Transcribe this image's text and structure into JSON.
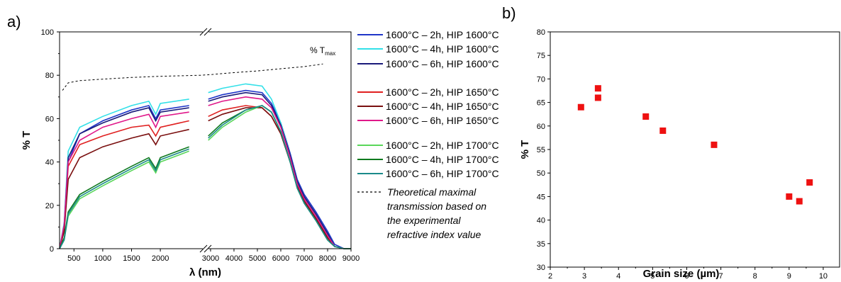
{
  "chart_data": [
    {
      "panel_label": "a)",
      "type": "line",
      "xlabel": "λ (nm)",
      "ylabel": "% T",
      "ylim": [
        0,
        100
      ],
      "yticks": [
        0,
        20,
        40,
        60,
        80,
        100
      ],
      "xticks": [
        "500",
        "1000",
        "1500",
        "2000",
        "3000",
        "4000",
        "5000",
        "6000",
        "7000",
        "8000",
        "9000"
      ],
      "axis_break": [
        2750,
        2850
      ],
      "annotation": "% T",
      "annotation_sub": "max",
      "series": [
        {
          "name": "1600°C – 2h, HIP 1600°C",
          "color": "#1f35c8",
          "points": [
            [
              250,
              0
            ],
            [
              330,
              10
            ],
            [
              400,
              40
            ],
            [
              600,
              53
            ],
            [
              1000,
              59
            ],
            [
              1500,
              64
            ],
            [
              1800,
              66
            ],
            [
              1920,
              60
            ],
            [
              2000,
              64
            ],
            [
              2500,
              66
            ],
            [
              2900,
              69
            ],
            [
              3500,
              71
            ],
            [
              4500,
              73
            ],
            [
              5200,
              72
            ],
            [
              5600,
              67
            ],
            [
              6000,
              58
            ],
            [
              6400,
              44
            ],
            [
              6700,
              32
            ],
            [
              7000,
              25
            ],
            [
              7500,
              17
            ],
            [
              8000,
              8
            ],
            [
              8300,
              2
            ],
            [
              8700,
              0
            ],
            [
              9000,
              0
            ]
          ]
        },
        {
          "name": "1600°C – 4h, HIP 1600°C",
          "color": "#33e0e8",
          "points": [
            [
              250,
              0
            ],
            [
              330,
              12
            ],
            [
              400,
              45
            ],
            [
              600,
              56
            ],
            [
              1000,
              61
            ],
            [
              1500,
              66
            ],
            [
              1800,
              68
            ],
            [
              1920,
              62
            ],
            [
              2000,
              67
            ],
            [
              2500,
              69
            ],
            [
              2900,
              72
            ],
            [
              3500,
              74
            ],
            [
              4500,
              76
            ],
            [
              5200,
              75
            ],
            [
              5600,
              69
            ],
            [
              6000,
              58
            ],
            [
              6400,
              43
            ],
            [
              6700,
              31
            ],
            [
              7000,
              24
            ],
            [
              7500,
              16
            ],
            [
              8000,
              7
            ],
            [
              8300,
              1
            ],
            [
              8700,
              0
            ],
            [
              9000,
              0
            ]
          ]
        },
        {
          "name": "1600°C – 6h, HIP 1600°C",
          "color": "#1a1a7a",
          "points": [
            [
              250,
              0
            ],
            [
              330,
              11
            ],
            [
              400,
              42
            ],
            [
              600,
              53
            ],
            [
              1000,
              58
            ],
            [
              1500,
              63
            ],
            [
              1800,
              65
            ],
            [
              1920,
              59
            ],
            [
              2000,
              63
            ],
            [
              2500,
              65
            ],
            [
              2900,
              68
            ],
            [
              3500,
              70
            ],
            [
              4500,
              72
            ],
            [
              5200,
              71
            ],
            [
              5600,
              66
            ],
            [
              6000,
              57
            ],
            [
              6400,
              43
            ],
            [
              6700,
              31
            ],
            [
              7000,
              24
            ],
            [
              7500,
              16
            ],
            [
              8000,
              7
            ],
            [
              8300,
              1
            ],
            [
              8700,
              0
            ],
            [
              9000,
              0
            ]
          ]
        },
        {
          "name": "1600°C – 2h, HIP 1650°C",
          "color": "#e02020",
          "points": [
            [
              250,
              0
            ],
            [
              330,
              10
            ],
            [
              400,
              38
            ],
            [
              600,
              48
            ],
            [
              1000,
              52
            ],
            [
              1500,
              56
            ],
            [
              1800,
              57
            ],
            [
              1920,
              52
            ],
            [
              2000,
              56
            ],
            [
              2500,
              59
            ],
            [
              2900,
              61
            ],
            [
              3500,
              64
            ],
            [
              4500,
              66
            ],
            [
              5200,
              65
            ],
            [
              5600,
              61
            ],
            [
              6000,
              53
            ],
            [
              6400,
              40
            ],
            [
              6700,
              29
            ],
            [
              7000,
              22
            ],
            [
              7500,
              14
            ],
            [
              8000,
              5
            ],
            [
              8300,
              1
            ],
            [
              8700,
              0
            ],
            [
              9000,
              0
            ]
          ]
        },
        {
          "name": "1600°C – 4h, HIP 1650°C",
          "color": "#7a0f0f",
          "points": [
            [
              250,
              0
            ],
            [
              330,
              8
            ],
            [
              400,
              32
            ],
            [
              600,
              42
            ],
            [
              1000,
              47
            ],
            [
              1500,
              51
            ],
            [
              1800,
              53
            ],
            [
              1920,
              48
            ],
            [
              2000,
              52
            ],
            [
              2500,
              55
            ],
            [
              2900,
              59
            ],
            [
              3500,
              62
            ],
            [
              4500,
              65
            ],
            [
              5200,
              65
            ],
            [
              5600,
              61
            ],
            [
              6000,
              53
            ],
            [
              6400,
              40
            ],
            [
              6700,
              29
            ],
            [
              7000,
              22
            ],
            [
              7500,
              14
            ],
            [
              8000,
              5
            ],
            [
              8300,
              1
            ],
            [
              8700,
              0
            ],
            [
              9000,
              0
            ]
          ]
        },
        {
          "name": "1600°C – 6h, HIP 1650°C",
          "color": "#e0188a",
          "points": [
            [
              250,
              0
            ],
            [
              330,
              11
            ],
            [
              400,
              40
            ],
            [
              600,
              50
            ],
            [
              1000,
              56
            ],
            [
              1500,
              60
            ],
            [
              1800,
              62
            ],
            [
              1920,
              56
            ],
            [
              2000,
              61
            ],
            [
              2500,
              63
            ],
            [
              2900,
              66
            ],
            [
              3500,
              68
            ],
            [
              4500,
              70
            ],
            [
              5200,
              69
            ],
            [
              5600,
              65
            ],
            [
              6000,
              56
            ],
            [
              6400,
              42
            ],
            [
              6700,
              30
            ],
            [
              7000,
              23
            ],
            [
              7500,
              15
            ],
            [
              8000,
              6
            ],
            [
              8300,
              1
            ],
            [
              8700,
              0
            ],
            [
              9000,
              0
            ]
          ]
        },
        {
          "name": "1600°C – 2h, HIP 1700°C",
          "color": "#5ad65a",
          "points": [
            [
              250,
              0
            ],
            [
              330,
              4
            ],
            [
              400,
              15
            ],
            [
              600,
              23
            ],
            [
              1000,
              29
            ],
            [
              1500,
              36
            ],
            [
              1800,
              40
            ],
            [
              1920,
              35
            ],
            [
              2000,
              40
            ],
            [
              2500,
              45
            ],
            [
              2900,
              50
            ],
            [
              3500,
              56
            ],
            [
              4500,
              63
            ],
            [
              5200,
              66
            ],
            [
              5600,
              63
            ],
            [
              6000,
              54
            ],
            [
              6400,
              40
            ],
            [
              6700,
              28
            ],
            [
              7000,
              21
            ],
            [
              7500,
              13
            ],
            [
              8000,
              4
            ],
            [
              8300,
              1
            ],
            [
              8700,
              0
            ],
            [
              9000,
              0
            ]
          ]
        },
        {
          "name": "1600°C – 4h, HIP 1700°C",
          "color": "#0f7a1f",
          "points": [
            [
              250,
              0
            ],
            [
              330,
              5
            ],
            [
              400,
              17
            ],
            [
              600,
              25
            ],
            [
              1000,
              31
            ],
            [
              1500,
              38
            ],
            [
              1800,
              42
            ],
            [
              1920,
              37
            ],
            [
              2000,
              42
            ],
            [
              2500,
              47
            ],
            [
              2900,
              52
            ],
            [
              3500,
              58
            ],
            [
              4500,
              64
            ],
            [
              5200,
              66
            ],
            [
              5600,
              63
            ],
            [
              6000,
              54
            ],
            [
              6400,
              40
            ],
            [
              6700,
              28
            ],
            [
              7000,
              21
            ],
            [
              7500,
              13
            ],
            [
              8000,
              4
            ],
            [
              8300,
              1
            ],
            [
              8700,
              0
            ],
            [
              9000,
              0
            ]
          ]
        },
        {
          "name": "1600°C – 6h, HIP 1700°C",
          "color": "#1a8a8a",
          "points": [
            [
              250,
              0
            ],
            [
              330,
              4
            ],
            [
              400,
              16
            ],
            [
              600,
              24
            ],
            [
              1000,
              30
            ],
            [
              1500,
              37
            ],
            [
              1800,
              41
            ],
            [
              1920,
              36
            ],
            [
              2000,
              41
            ],
            [
              2500,
              46
            ],
            [
              2900,
              51
            ],
            [
              3500,
              57
            ],
            [
              4500,
              64
            ],
            [
              5200,
              66
            ],
            [
              5600,
              63
            ],
            [
              6000,
              54
            ],
            [
              6400,
              40
            ],
            [
              6700,
              28
            ],
            [
              7000,
              21
            ],
            [
              7500,
              13
            ],
            [
              8000,
              4
            ],
            [
              8300,
              1
            ],
            [
              8700,
              0
            ],
            [
              9000,
              0
            ]
          ]
        }
      ],
      "theoretical": {
        "name": "Theoretical maximal transmission based on the experimental refractive index value",
        "legend_lines": [
          "Theoretical maximal",
          "transmission based on",
          "the experimental",
          "refractive index value"
        ],
        "points": [
          [
            300,
            73
          ],
          [
            400,
            76.5
          ],
          [
            600,
            77.5
          ],
          [
            1000,
            78.2
          ],
          [
            1500,
            79
          ],
          [
            2000,
            79.5
          ],
          [
            2700,
            80
          ],
          [
            3000,
            80.3
          ],
          [
            4000,
            81.2
          ],
          [
            5000,
            82
          ],
          [
            6000,
            83
          ],
          [
            7000,
            84
          ],
          [
            7800,
            85.2
          ]
        ]
      }
    },
    {
      "panel_label": "b)",
      "type": "scatter",
      "xlabel": "Grain size (µm)",
      "ylabel": "% T",
      "xlim": [
        2,
        10.5
      ],
      "ylim": [
        30,
        80
      ],
      "xticks": [
        2,
        3,
        4,
        5,
        6,
        7,
        8,
        9,
        10
      ],
      "yticks": [
        30,
        35,
        40,
        45,
        50,
        55,
        60,
        65,
        70,
        75,
        80
      ],
      "marker_color": "#ee1111",
      "points": [
        [
          2.9,
          64
        ],
        [
          3.4,
          68
        ],
        [
          3.4,
          66
        ],
        [
          4.8,
          62
        ],
        [
          5.3,
          59
        ],
        [
          6.8,
          56
        ],
        [
          9.0,
          45
        ],
        [
          9.3,
          44
        ],
        [
          9.6,
          48
        ]
      ]
    }
  ]
}
